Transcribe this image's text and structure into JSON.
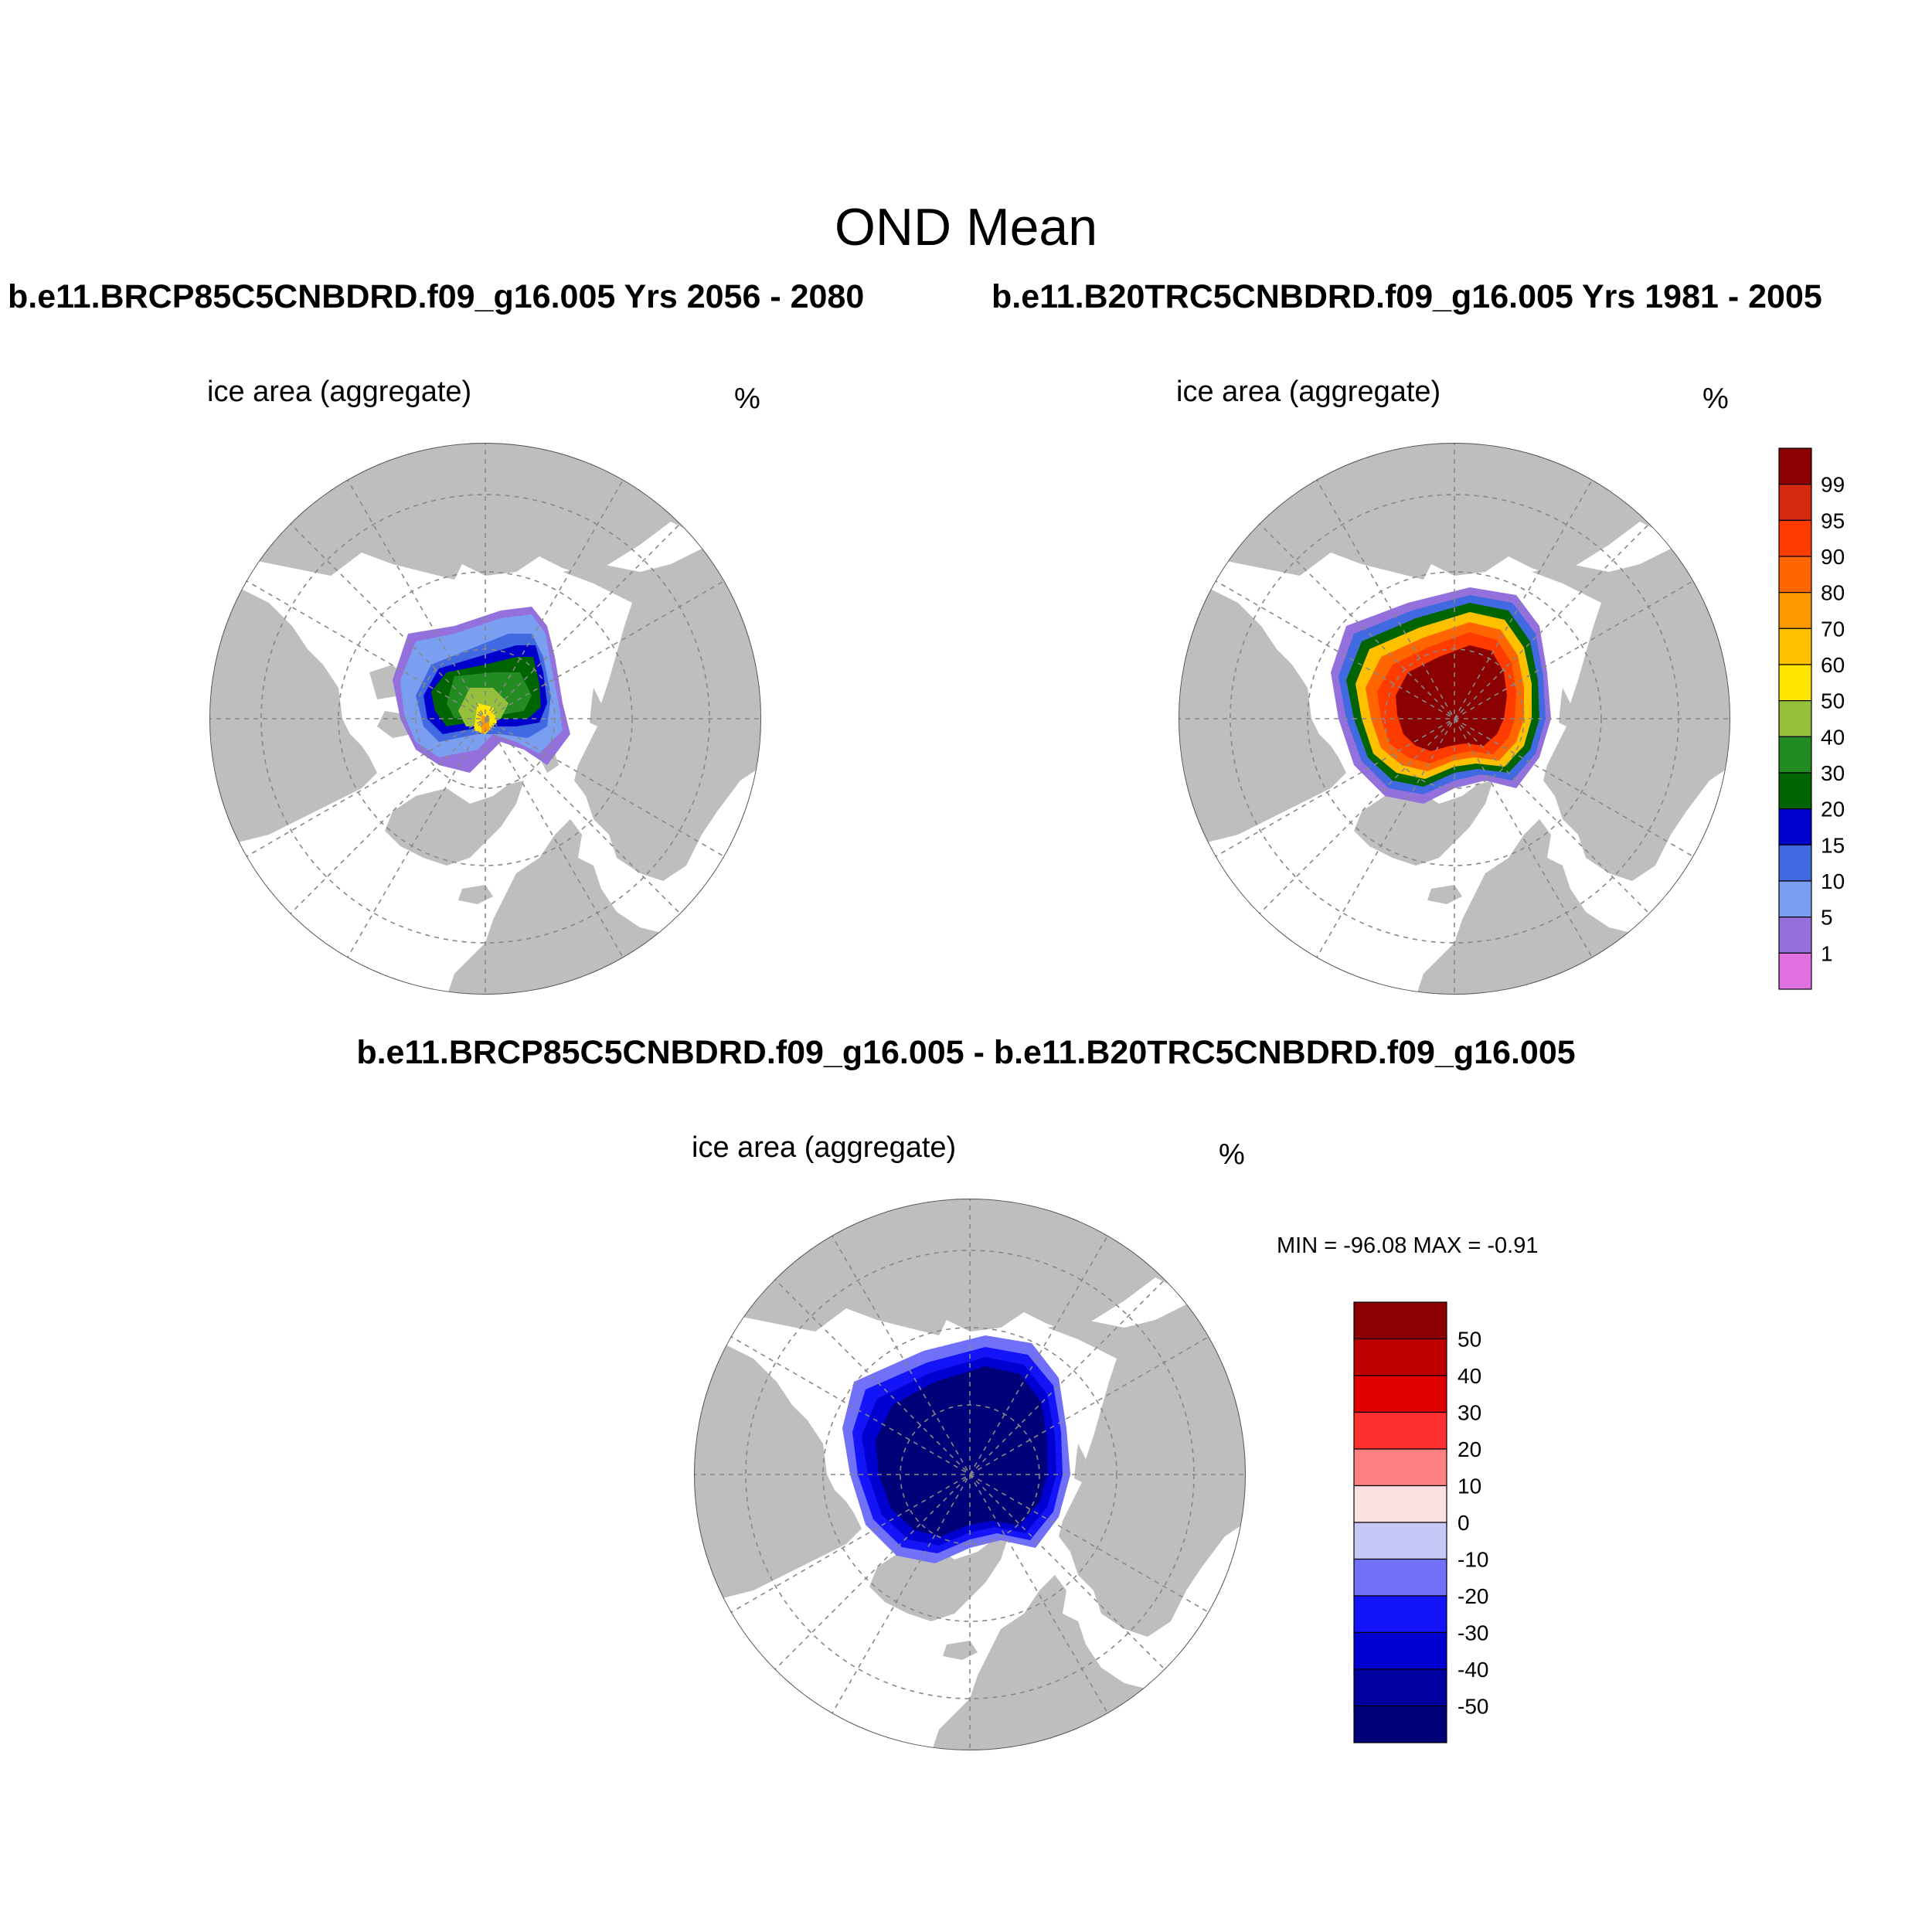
{
  "title": "OND Mean",
  "panels": [
    {
      "case_title": "b.e11.BRCP85C5CNBDRD.f09_g16.005  Yrs 2056 - 2080",
      "variable": "ice area  (aggregate)",
      "units": "%"
    },
    {
      "case_title": "b.e11.B20TRC5CNBDRD.f09_g16.005  Yrs 1981 - 2005",
      "variable": "ice area  (aggregate)",
      "units": "%"
    },
    {
      "case_title": "b.e11.BRCP85C5CNBDRD.f09_g16.005 - b.e11.B20TRC5CNBDRD.f09_g16.005",
      "variable": "ice area  (aggregate)",
      "units": "%",
      "stats": "MIN = -96.08 MAX =  -0.91"
    }
  ],
  "colorbar_abs": {
    "labels": [
      "99",
      "95",
      "90",
      "80",
      "70",
      "60",
      "50",
      "40",
      "30",
      "20",
      "15",
      "10",
      "5",
      "1"
    ],
    "colors": [
      "#8b0000",
      "#d42a10",
      "#ff3c00",
      "#ff6600",
      "#ff9900",
      "#ffc000",
      "#ffe500",
      "#96c03c",
      "#228b22",
      "#006400",
      "#0000cd",
      "#4169e1",
      "#7b9ff0",
      "#9370db",
      "#e070e0"
    ]
  },
  "colorbar_diff": {
    "labels": [
      "50",
      "40",
      "30",
      "20",
      "10",
      "0",
      "-10",
      "-20",
      "-30",
      "-40",
      "-50"
    ],
    "colors": [
      "#8b0000",
      "#be0000",
      "#e00000",
      "#ff3030",
      "#ff8080",
      "#fae0e0",
      "#c8c8f8",
      "#7070f8",
      "#1414f8",
      "#0000d0",
      "#0000a0",
      "#000078"
    ]
  },
  "map_colors": {
    "land": "#bebebe",
    "ocean": "#ffffff",
    "grid": "#888888"
  }
}
